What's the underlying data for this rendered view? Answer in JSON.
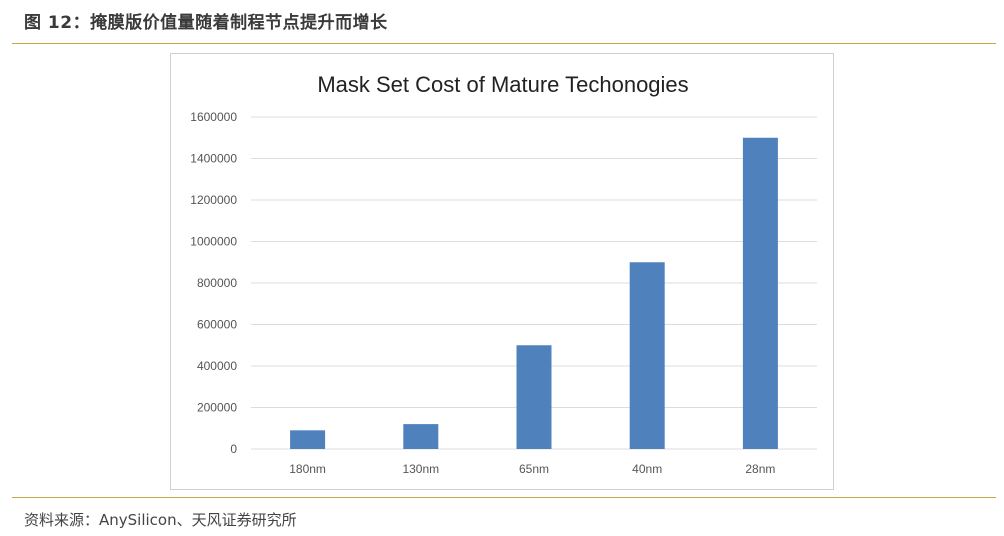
{
  "figure_title": "图 12：掩膜版价值量随着制程节点提升而增长",
  "source_note": "资料来源：AnySilicon、天风证券研究所",
  "colors": {
    "bar": "#4f81bd",
    "rule": "#c9a64a",
    "grid": "#dcdcdc"
  },
  "chart_data": {
    "type": "bar",
    "title": "Mask Set Cost of Mature Techonogies",
    "categories": [
      "180nm",
      "130nm",
      "65nm",
      "40nm",
      "28nm"
    ],
    "values": [
      90000,
      120000,
      500000,
      900000,
      1500000
    ],
    "xlabel": "",
    "ylabel": "",
    "ylim": [
      0,
      1600000
    ],
    "yticks": [
      0,
      200000,
      400000,
      600000,
      800000,
      1000000,
      1200000,
      1400000,
      1600000
    ],
    "ytick_labels": [
      "0",
      "200000",
      "400000",
      "600000",
      "800000",
      "1000000",
      "1200000",
      "1400000",
      "1600000"
    ],
    "grid": true,
    "legend": "none"
  }
}
